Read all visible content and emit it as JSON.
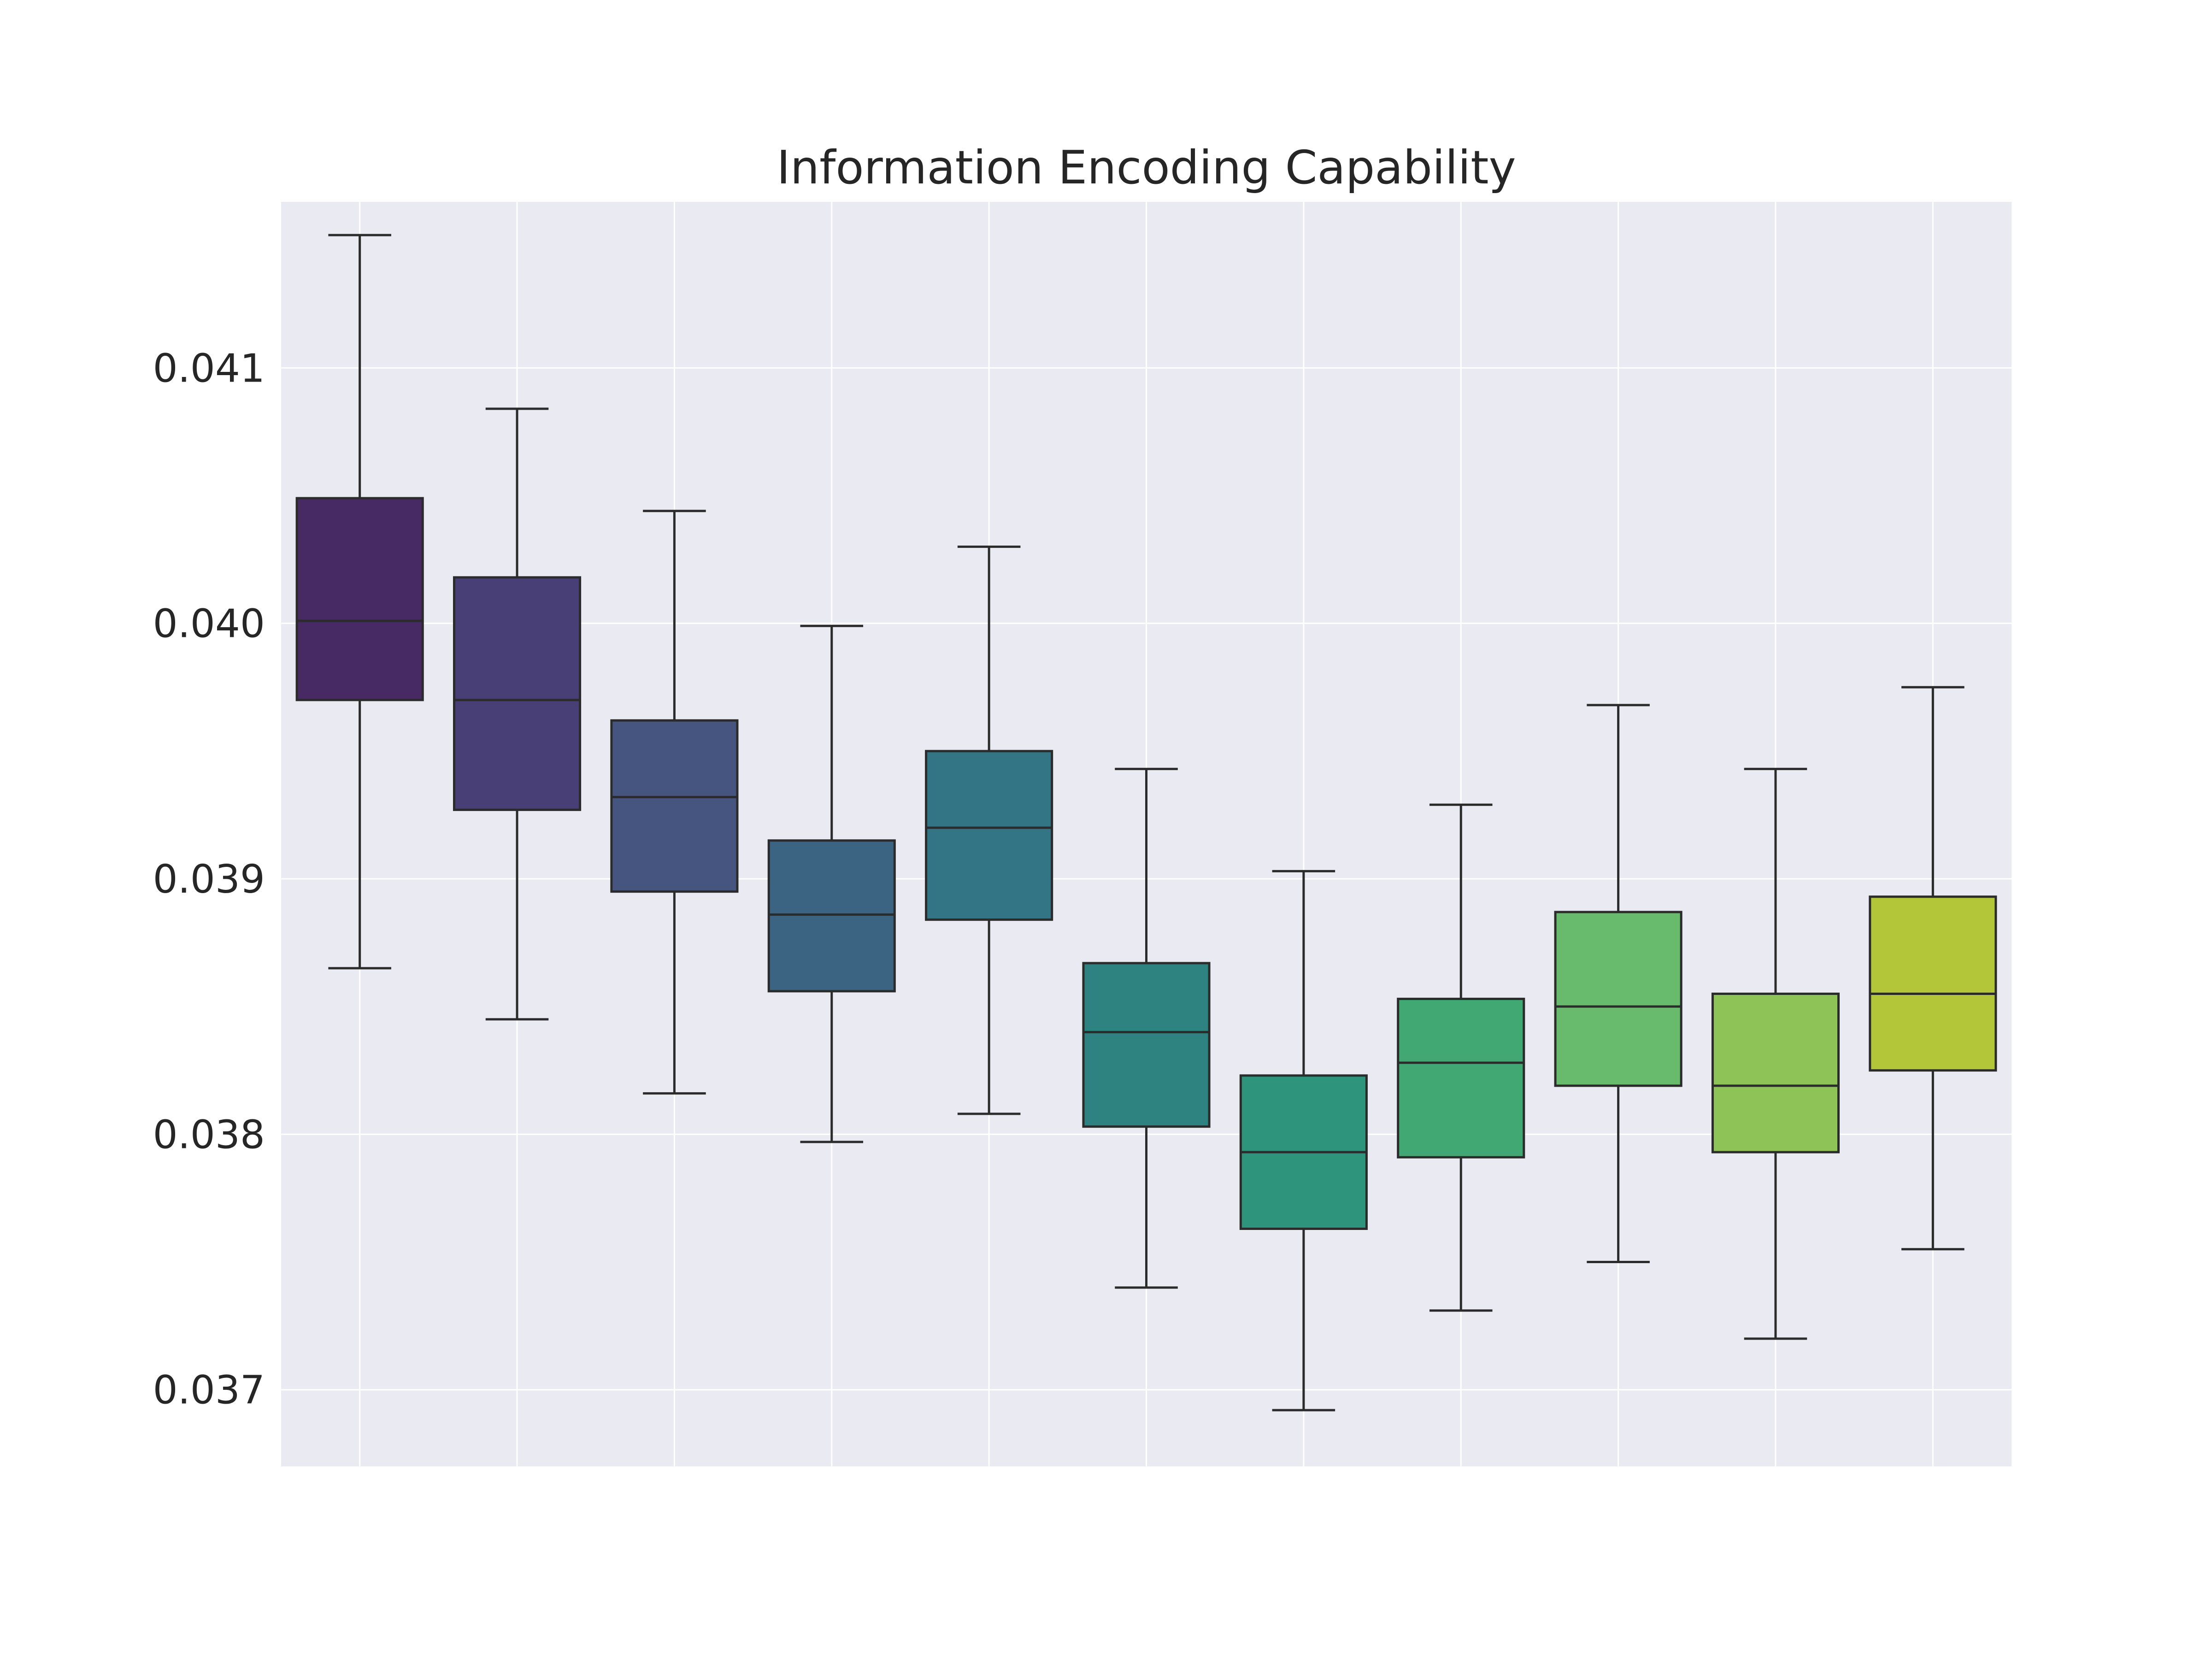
{
  "chart_data": {
    "type": "box",
    "title": "Information Encoding Capability",
    "xlabel": "",
    "ylabel": "",
    "ylim": [
      0.0367,
      0.04165
    ],
    "yticks": [
      0.037,
      0.038,
      0.039,
      0.04,
      0.041
    ],
    "ytick_labels": [
      "0.037",
      "0.038",
      "0.039",
      "0.040",
      "0.041"
    ],
    "grid": true,
    "colors": {
      "plot_background": "#eaeaf2",
      "grid": "#ffffff",
      "box_edge": "#2b2b2b"
    },
    "boxes": [
      {
        "whisker_low": 0.03865,
        "q1": 0.0397,
        "median": 0.04001,
        "q3": 0.04049,
        "whisker_high": 0.04152,
        "color": "#472a63"
      },
      {
        "whisker_low": 0.03845,
        "q1": 0.03927,
        "median": 0.0397,
        "q3": 0.04018,
        "whisker_high": 0.04084,
        "color": "#473f75"
      },
      {
        "whisker_low": 0.03816,
        "q1": 0.03895,
        "median": 0.03932,
        "q3": 0.03962,
        "whisker_high": 0.04044,
        "color": "#46557f"
      },
      {
        "whisker_low": 0.03797,
        "q1": 0.03856,
        "median": 0.03886,
        "q3": 0.03915,
        "whisker_high": 0.03999,
        "color": "#3b6483"
      },
      {
        "whisker_low": 0.03808,
        "q1": 0.03884,
        "median": 0.0392,
        "q3": 0.0395,
        "whisker_high": 0.0403,
        "color": "#347585"
      },
      {
        "whisker_low": 0.0374,
        "q1": 0.03803,
        "median": 0.0384,
        "q3": 0.03867,
        "whisker_high": 0.03943,
        "color": "#2e8280"
      },
      {
        "whisker_low": 0.03692,
        "q1": 0.03763,
        "median": 0.03793,
        "q3": 0.03823,
        "whisker_high": 0.03903,
        "color": "#2e957c"
      },
      {
        "whisker_low": 0.03731,
        "q1": 0.03791,
        "median": 0.03828,
        "q3": 0.03853,
        "whisker_high": 0.03929,
        "color": "#42a873"
      },
      {
        "whisker_low": 0.0375,
        "q1": 0.03819,
        "median": 0.0385,
        "q3": 0.03887,
        "whisker_high": 0.03968,
        "color": "#68ba6c"
      },
      {
        "whisker_low": 0.0372,
        "q1": 0.03793,
        "median": 0.03819,
        "q3": 0.03855,
        "whisker_high": 0.03943,
        "color": "#8ec357"
      },
      {
        "whisker_low": 0.03755,
        "q1": 0.03825,
        "median": 0.03855,
        "q3": 0.03893,
        "whisker_high": 0.03975,
        "color": "#b3c63a"
      }
    ]
  }
}
